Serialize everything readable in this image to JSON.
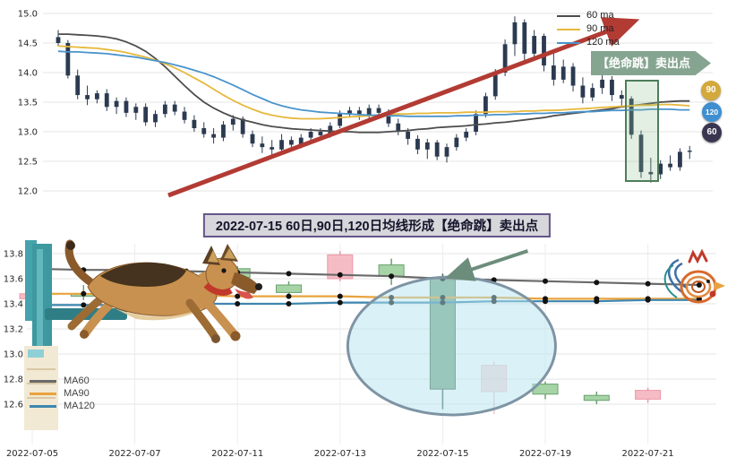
{
  "caption": "2022-07-15 60日,90日,120日均线形成【绝命跳】卖出点",
  "top_chart": {
    "legend": [
      {
        "label": "60 ma",
        "color": "#4d4d4d"
      },
      {
        "label": "90 ma",
        "color": "#e6b83c"
      },
      {
        "label": "120 ma",
        "color": "#4a94cc"
      }
    ],
    "annotation_label": "【绝命跳】卖出点",
    "annotation_color": "#86a591",
    "badges": [
      {
        "label": "90",
        "color": "#d4a93c"
      },
      {
        "label": "120",
        "color": "#3f8fd0"
      },
      {
        "label": "60",
        "color": "#3a3550"
      }
    ]
  },
  "bottom_chart": {
    "legend": [
      {
        "label": "MA60",
        "color": "#6a6a6a"
      },
      {
        "label": "MA90",
        "color": "#e8a33d"
      },
      {
        "label": "MA120",
        "color": "#3f87b0"
      }
    ]
  },
  "chart_data": [
    {
      "type": "candlestick",
      "panel": "daily-overview",
      "ylim": [
        12.0,
        15.0
      ],
      "y_ticks": [
        15.0,
        14.5,
        14.0,
        13.5,
        13.0,
        12.5,
        12.0
      ],
      "grid": "horizontal",
      "legend_position": "top-right",
      "candle_color": "#2b3a50",
      "annotations": {
        "trend_arrow": "up-right",
        "trend_arrow_color": "#b23b34",
        "sell_point_label": "【绝命跳】卖出点",
        "highlight_candle_range": [
          59,
          61
        ]
      },
      "series": [
        {
          "name": "60 ma",
          "color": "#4d4d4d",
          "values": [
            14.65,
            14.65,
            14.64,
            14.63,
            14.62,
            14.6,
            14.57,
            14.52,
            14.45,
            14.36,
            14.24,
            14.1,
            13.94,
            13.78,
            13.63,
            13.5,
            13.4,
            13.32,
            13.25,
            13.2,
            13.16,
            13.12,
            13.09,
            13.07,
            13.05,
            13.04,
            13.03,
            13.02,
            13.01,
            13.0,
            13.0,
            12.99,
            12.99,
            12.99,
            13.0,
            13.01,
            13.02,
            13.04,
            13.05,
            13.07,
            13.08,
            13.09,
            13.1,
            13.12,
            13.13,
            13.15,
            13.16,
            13.18,
            13.2,
            13.22,
            13.24,
            13.27,
            13.29,
            13.31,
            13.33,
            13.35,
            13.37,
            13.39,
            13.42,
            13.44,
            13.46,
            13.48,
            13.5,
            13.51,
            13.52,
            13.52
          ]
        },
        {
          "name": "90 ma",
          "color": "#e6b83c",
          "values": [
            14.45,
            14.44,
            14.43,
            14.42,
            14.41,
            14.39,
            14.37,
            14.34,
            14.3,
            14.26,
            14.21,
            14.15,
            14.08,
            14.0,
            13.91,
            13.82,
            13.72,
            13.62,
            13.53,
            13.45,
            13.38,
            13.32,
            13.28,
            13.25,
            13.23,
            13.22,
            13.22,
            13.22,
            13.23,
            13.24,
            13.25,
            13.26,
            13.27,
            13.28,
            13.29,
            13.3,
            13.3,
            13.31,
            13.31,
            13.32,
            13.32,
            13.32,
            13.33,
            13.33,
            13.33,
            13.34,
            13.34,
            13.34,
            13.35,
            13.35,
            13.36,
            13.36,
            13.37,
            13.38,
            13.39,
            13.4,
            13.41,
            13.42,
            13.43,
            13.44,
            13.45,
            13.45,
            13.46,
            13.46,
            13.45,
            13.44
          ]
        },
        {
          "name": "120 ma",
          "color": "#4a94cc",
          "values": [
            14.36,
            14.35,
            14.35,
            14.34,
            14.33,
            14.32,
            14.3,
            14.28,
            14.26,
            14.23,
            14.2,
            14.17,
            14.13,
            14.09,
            14.04,
            13.99,
            13.93,
            13.86,
            13.79,
            13.71,
            13.63,
            13.56,
            13.49,
            13.44,
            13.4,
            13.37,
            13.35,
            13.33,
            13.32,
            13.31,
            13.3,
            13.29,
            13.28,
            13.28,
            13.27,
            13.27,
            13.26,
            13.26,
            13.26,
            13.26,
            13.26,
            13.27,
            13.27,
            13.28,
            13.28,
            13.29,
            13.29,
            13.3,
            13.3,
            13.31,
            13.31,
            13.32,
            13.32,
            13.33,
            13.34,
            13.34,
            13.35,
            13.36,
            13.36,
            13.37,
            13.37,
            13.38,
            13.38,
            13.38,
            13.37,
            13.37
          ]
        }
      ],
      "ohlc": [
        [
          14.6,
          14.72,
          14.45,
          14.5
        ],
        [
          14.5,
          14.55,
          13.9,
          13.95
        ],
        [
          13.95,
          14.05,
          13.55,
          13.62
        ],
        [
          13.62,
          13.78,
          13.45,
          13.55
        ],
        [
          13.55,
          13.7,
          13.48,
          13.65
        ],
        [
          13.65,
          13.72,
          13.35,
          13.42
        ],
        [
          13.42,
          13.58,
          13.3,
          13.52
        ],
        [
          13.52,
          13.58,
          13.25,
          13.32
        ],
        [
          13.32,
          13.48,
          13.2,
          13.42
        ],
        [
          13.42,
          13.48,
          13.1,
          13.16
        ],
        [
          13.16,
          13.36,
          13.08,
          13.3
        ],
        [
          13.3,
          13.52,
          13.24,
          13.46
        ],
        [
          13.46,
          13.52,
          13.28,
          13.34
        ],
        [
          13.34,
          13.42,
          13.14,
          13.2
        ],
        [
          13.2,
          13.28,
          13.0,
          13.06
        ],
        [
          13.06,
          13.16,
          12.9,
          12.96
        ],
        [
          12.96,
          13.06,
          12.8,
          12.9
        ],
        [
          12.9,
          13.18,
          12.84,
          13.12
        ],
        [
          13.12,
          13.28,
          13.02,
          13.22
        ],
        [
          13.22,
          13.26,
          12.9,
          12.96
        ],
        [
          12.96,
          13.02,
          12.74,
          12.8
        ],
        [
          12.8,
          12.92,
          12.64,
          12.74
        ],
        [
          12.74,
          12.86,
          12.6,
          12.7
        ],
        [
          12.7,
          12.96,
          12.64,
          12.86
        ],
        [
          12.86,
          12.92,
          12.7,
          12.78
        ],
        [
          12.78,
          12.96,
          12.72,
          12.9
        ],
        [
          12.9,
          13.06,
          12.84,
          13.0
        ],
        [
          13.0,
          13.06,
          12.86,
          12.94
        ],
        [
          12.94,
          13.16,
          12.9,
          13.1
        ],
        [
          13.1,
          13.36,
          13.06,
          13.3
        ],
        [
          13.3,
          13.42,
          13.24,
          13.36
        ],
        [
          13.36,
          13.42,
          13.2,
          13.28
        ],
        [
          13.28,
          13.46,
          13.22,
          13.4
        ],
        [
          13.4,
          13.46,
          13.24,
          13.32
        ],
        [
          13.32,
          13.38,
          13.08,
          13.14
        ],
        [
          13.14,
          13.22,
          12.94,
          13.0
        ],
        [
          13.0,
          13.06,
          12.78,
          12.88
        ],
        [
          12.88,
          12.94,
          12.62,
          12.7
        ],
        [
          12.7,
          12.88,
          12.54,
          12.82
        ],
        [
          12.82,
          12.86,
          12.52,
          12.58
        ],
        [
          12.58,
          12.8,
          12.48,
          12.74
        ],
        [
          12.74,
          12.96,
          12.68,
          12.9
        ],
        [
          12.9,
          13.06,
          12.84,
          13.0
        ],
        [
          13.0,
          13.36,
          12.94,
          13.3
        ],
        [
          13.3,
          13.66,
          13.24,
          13.6
        ],
        [
          13.6,
          14.06,
          13.54,
          14.0
        ],
        [
          14.0,
          14.56,
          13.94,
          14.48
        ],
        [
          14.48,
          14.95,
          14.28,
          14.85
        ],
        [
          14.85,
          14.9,
          14.18,
          14.32
        ],
        [
          14.32,
          14.72,
          14.24,
          14.62
        ],
        [
          14.62,
          14.66,
          14.02,
          14.12
        ],
        [
          14.12,
          14.32,
          13.78,
          13.88
        ],
        [
          13.88,
          14.22,
          13.82,
          14.1
        ],
        [
          14.1,
          14.16,
          13.68,
          13.78
        ],
        [
          13.78,
          13.92,
          13.48,
          13.58
        ],
        [
          13.58,
          13.82,
          13.52,
          13.74
        ],
        [
          13.74,
          13.96,
          13.64,
          13.88
        ],
        [
          13.88,
          13.94,
          13.52,
          13.62
        ],
        [
          13.62,
          13.7,
          13.42,
          13.56
        ],
        [
          13.56,
          13.6,
          12.88,
          12.95
        ],
        [
          12.95,
          13.02,
          12.22,
          12.32
        ],
        [
          12.32,
          12.56,
          12.14,
          12.28
        ],
        [
          12.28,
          12.52,
          12.2,
          12.46
        ],
        [
          12.46,
          12.6,
          12.34,
          12.4
        ],
        [
          12.4,
          12.72,
          12.34,
          12.66
        ],
        [
          12.66,
          12.76,
          12.54,
          12.68
        ]
      ]
    },
    {
      "type": "candlestick",
      "panel": "zoom-july",
      "ylim": [
        12.5,
        13.9
      ],
      "y_ticks": [
        13.8,
        13.6,
        13.4,
        13.2,
        13.0,
        12.8,
        12.6
      ],
      "x_ticks": [
        "2022-07-05",
        "2022-07-07",
        "2022-07-11",
        "2022-07-13",
        "2022-07-15",
        "2022-07-19",
        "2022-07-21"
      ],
      "dates": [
        "2022-07-05",
        "2022-07-06",
        "2022-07-07",
        "2022-07-08",
        "2022-07-11",
        "2022-07-12",
        "2022-07-13",
        "2022-07-14",
        "2022-07-15",
        "2022-07-18",
        "2022-07-19",
        "2022-07-20",
        "2022-07-21",
        "2022-07-22"
      ],
      "grid": "both",
      "legend_position": "bottom-left",
      "up_color": "#f6bcc6",
      "down_color": "#a6d4a6",
      "highlight_color": "#7fa886",
      "candles": [
        {
          "date": "2022-07-05",
          "o": 13.44,
          "h": 13.52,
          "l": 13.4,
          "c": 13.48
        },
        {
          "date": "2022-07-06",
          "o": 13.48,
          "h": 13.55,
          "l": 13.43,
          "c": 13.46
        },
        {
          "date": "2022-07-07",
          "o": 13.46,
          "h": 13.6,
          "l": 13.44,
          "c": 13.57
        },
        {
          "date": "2022-07-08",
          "o": 13.57,
          "h": 13.64,
          "l": 13.52,
          "c": 13.61
        },
        {
          "date": "2022-07-11",
          "o": 13.68,
          "h": 13.7,
          "l": 13.58,
          "c": 13.61
        },
        {
          "date": "2022-07-12",
          "o": 13.55,
          "h": 13.58,
          "l": 13.46,
          "c": 13.49
        },
        {
          "date": "2022-07-13",
          "o": 13.6,
          "h": 13.82,
          "l": 13.58,
          "c": 13.79
        },
        {
          "date": "2022-07-14",
          "o": 13.71,
          "h": 13.76,
          "l": 13.55,
          "c": 13.62
        },
        {
          "date": "2022-07-15",
          "o": 13.61,
          "h": 13.64,
          "l": 12.56,
          "c": 12.72,
          "highlight": true
        },
        {
          "date": "2022-07-18",
          "o": 12.7,
          "h": 12.94,
          "l": 12.52,
          "c": 12.91,
          "faded": true
        },
        {
          "date": "2022-07-19",
          "o": 12.76,
          "h": 12.78,
          "l": 12.64,
          "c": 12.68
        },
        {
          "date": "2022-07-20",
          "o": 12.67,
          "h": 12.7,
          "l": 12.6,
          "c": 12.63
        },
        {
          "date": "2022-07-21",
          "o": 12.64,
          "h": 12.73,
          "l": 12.61,
          "c": 12.71
        }
      ],
      "series": [
        {
          "name": "MA60",
          "color": "#6a6a6a",
          "values": [
            13.68,
            13.67,
            13.67,
            13.66,
            13.65,
            13.64,
            13.63,
            13.62,
            13.6,
            13.59,
            13.58,
            13.57,
            13.56,
            13.55
          ]
        },
        {
          "name": "MA90",
          "color": "#e8a33d",
          "values": [
            13.48,
            13.48,
            13.47,
            13.47,
            13.46,
            13.46,
            13.46,
            13.45,
            13.45,
            13.45,
            13.44,
            13.44,
            13.44,
            13.44
          ]
        },
        {
          "name": "MA120",
          "color": "#3f87b0",
          "values": [
            13.39,
            13.39,
            13.39,
            13.4,
            13.4,
            13.4,
            13.41,
            13.41,
            13.41,
            13.42,
            13.42,
            13.42,
            13.43,
            13.43
          ]
        }
      ],
      "annotations": {
        "highlight_ellipse_on": "2022-07-15",
        "callout_arrow_color": "#6d8d7c"
      }
    }
  ]
}
